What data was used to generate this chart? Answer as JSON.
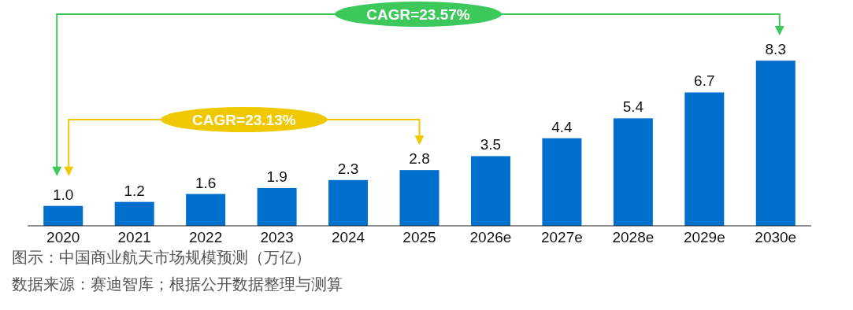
{
  "chart_data": {
    "type": "bar",
    "title": "图示：中国商业航天市场规模预测（万亿）",
    "categories": [
      "2020",
      "2021",
      "2022",
      "2023",
      "2024",
      "2025",
      "2026e",
      "2027e",
      "2028e",
      "2029e",
      "2030e"
    ],
    "values": [
      1.0,
      1.2,
      1.6,
      1.9,
      2.3,
      2.8,
      3.5,
      4.4,
      5.4,
      6.7,
      8.3
    ],
    "value_labels": [
      "1.0",
      "1.2",
      "1.6",
      "1.9",
      "2.3",
      "2.8",
      "3.5",
      "4.4",
      "5.4",
      "6.7",
      "8.3"
    ],
    "color": "#0070cc",
    "annotations": [
      "CAGR=23.57%",
      "CAGR=23.13%",
      "数据来源：赛迪智库；根据公开数据整理与测算"
    ]
  }
}
